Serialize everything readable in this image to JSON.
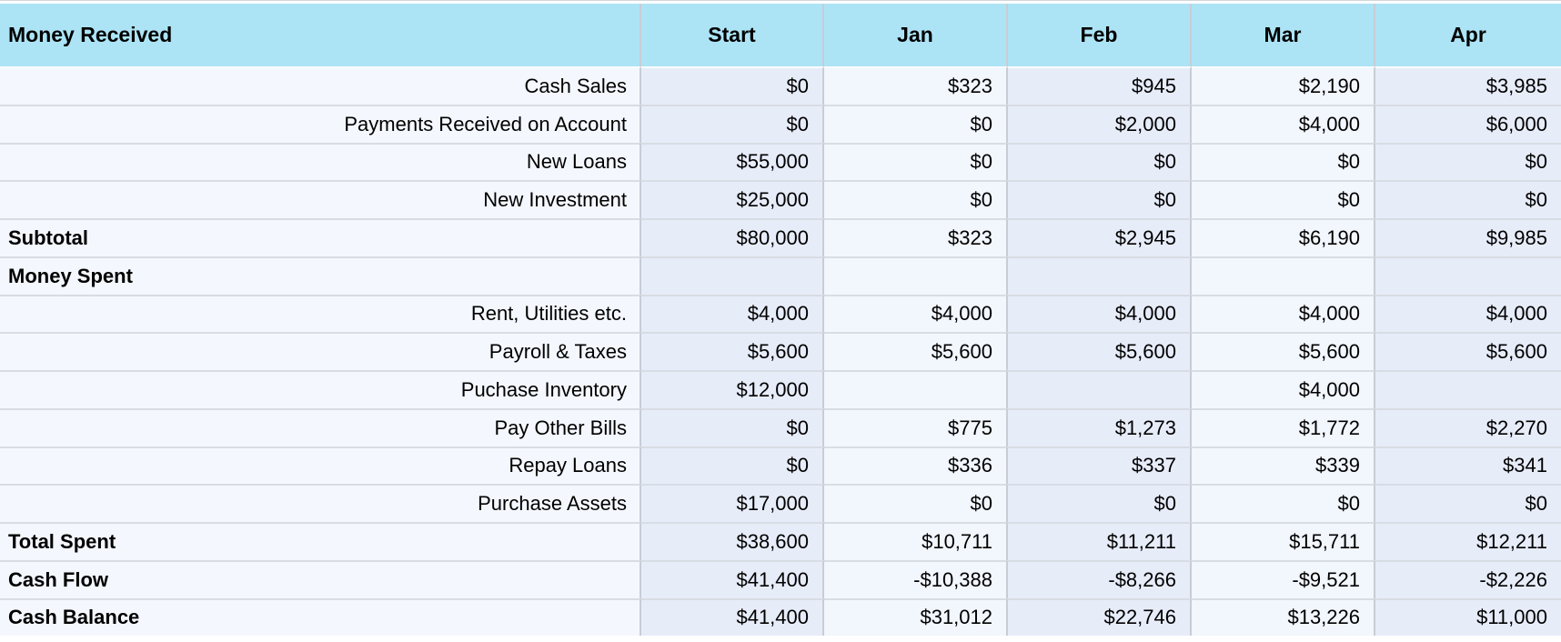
{
  "table": {
    "header": {
      "label": "Money Received",
      "columns": [
        "Start",
        "Jan",
        "Feb",
        "Mar",
        "Apr"
      ]
    },
    "rows": [
      {
        "label": "Cash Sales",
        "bold": false,
        "values": [
          "$0",
          "$323",
          "$945",
          "$2,190",
          "$3,985"
        ]
      },
      {
        "label": "Payments Received on Account",
        "bold": false,
        "values": [
          "$0",
          "$0",
          "$2,000",
          "$4,000",
          "$6,000"
        ]
      },
      {
        "label": "New Loans",
        "bold": false,
        "values": [
          "$55,000",
          "$0",
          "$0",
          "$0",
          "$0"
        ]
      },
      {
        "label": "New Investment",
        "bold": false,
        "values": [
          "$25,000",
          "$0",
          "$0",
          "$0",
          "$0"
        ]
      },
      {
        "label": "Subtotal",
        "bold": true,
        "values": [
          "$80,000",
          "$323",
          "$2,945",
          "$6,190",
          "$9,985"
        ]
      },
      {
        "label": "Money Spent",
        "bold": true,
        "values": [
          "",
          "",
          "",
          "",
          ""
        ]
      },
      {
        "label": "Rent, Utilities etc.",
        "bold": false,
        "values": [
          "$4,000",
          "$4,000",
          "$4,000",
          "$4,000",
          "$4,000"
        ]
      },
      {
        "label": "Payroll & Taxes",
        "bold": false,
        "values": [
          "$5,600",
          "$5,600",
          "$5,600",
          "$5,600",
          "$5,600"
        ]
      },
      {
        "label": "Puchase Inventory",
        "bold": false,
        "values": [
          "$12,000",
          "",
          "",
          "$4,000",
          ""
        ]
      },
      {
        "label": "Pay Other Bills",
        "bold": false,
        "values": [
          "$0",
          "$775",
          "$1,273",
          "$1,772",
          "$2,270"
        ]
      },
      {
        "label": "Repay Loans",
        "bold": false,
        "values": [
          "$0",
          "$336",
          "$337",
          "$339",
          "$341"
        ]
      },
      {
        "label": "Purchase Assets",
        "bold": false,
        "values": [
          "$17,000",
          "$0",
          "$0",
          "$0",
          "$0"
        ]
      },
      {
        "label": "Total Spent",
        "bold": true,
        "values": [
          "$38,600",
          "$10,711",
          "$11,211",
          "$15,711",
          "$12,211"
        ]
      },
      {
        "label": "Cash Flow",
        "bold": true,
        "values": [
          "$41,400",
          "-$10,388",
          "-$8,266",
          "-$9,521",
          "-$2,226"
        ]
      },
      {
        "label": "Cash Balance",
        "bold": true,
        "values": [
          "$41,400",
          "$31,012",
          "$22,746",
          "$13,226",
          "$11,000"
        ]
      }
    ]
  },
  "colors": {
    "header_background": "#ace4f6",
    "label_column_background": "#f4f7fd",
    "data_column_light": "#f2f6fd",
    "data_column_dark": "#e7ecf9",
    "row_border": "#d8dce3",
    "column_border": "#c8cdd5",
    "text": "#000000"
  }
}
